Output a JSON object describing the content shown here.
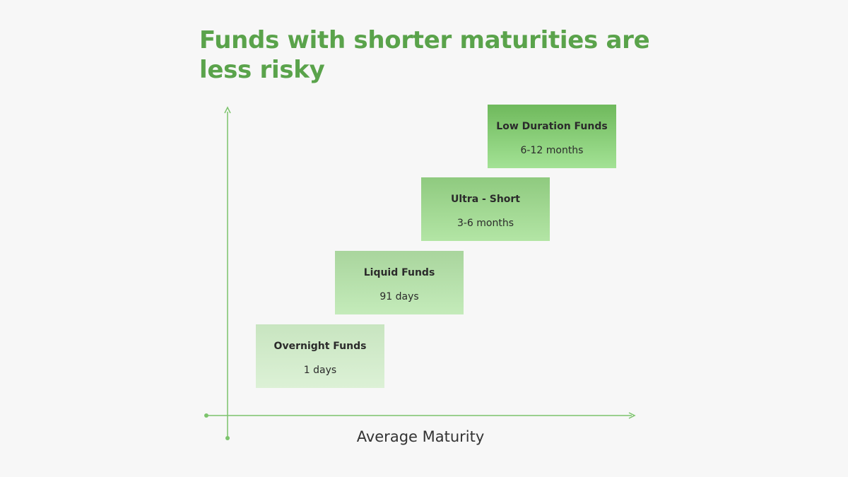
{
  "title": "Funds with shorter maturities are less risky",
  "x_axis_label": "Average Maturity",
  "colors": {
    "title": "#5aa34b",
    "axis": "#7cc46c",
    "text": "#2b2b2b"
  },
  "funds": [
    {
      "label": "Overnight Funds",
      "range": "1 days"
    },
    {
      "label": "Liquid Funds",
      "range": "91 days"
    },
    {
      "label": "Ultra - Short",
      "range": "3-6 months"
    },
    {
      "label": "Low Duration Funds",
      "range": "6-12 months"
    }
  ]
}
